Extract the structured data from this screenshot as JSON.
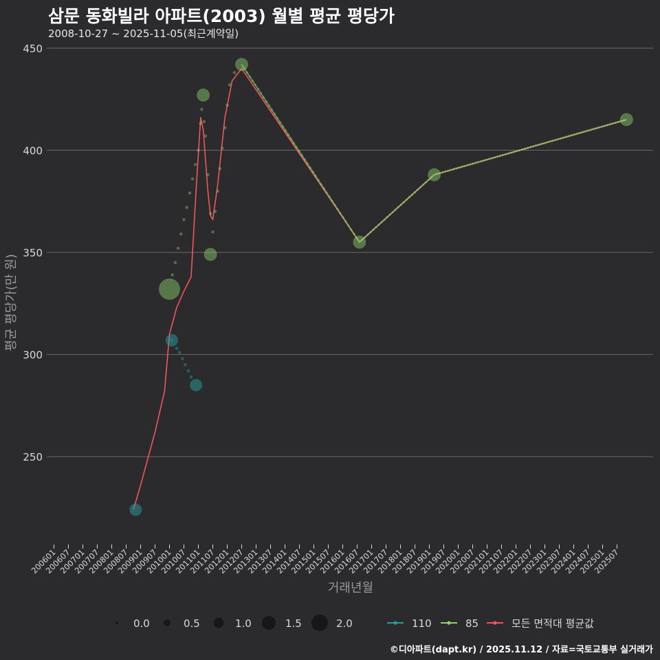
{
  "chart_data": {
    "type": "line",
    "title": "삼문 동화빌라 아파트(2003) 월별 평균 평당가",
    "subtitle": "2008-10-27 ~ 2025-11-05(최근계약일)",
    "xlabel": "거래년월",
    "ylabel": "평균 평당가(만 원)",
    "ylim": [
      207,
      452
    ],
    "y_ticks": [
      250,
      300,
      350,
      400,
      450
    ],
    "x_tick_labels": [
      "200601",
      "200607",
      "200701",
      "200707",
      "200801",
      "200807",
      "200901",
      "200907",
      "201001",
      "201007",
      "201101",
      "201107",
      "201201",
      "201207",
      "201301",
      "201307",
      "201401",
      "201407",
      "201501",
      "201507",
      "201601",
      "201607",
      "201701",
      "201707",
      "201801",
      "201807",
      "201901",
      "201907",
      "202001",
      "202007",
      "202101",
      "202107",
      "202201",
      "202207",
      "202301",
      "202307",
      "202401",
      "202407",
      "202501",
      "202507"
    ],
    "grid": true,
    "series": [
      {
        "name": "110",
        "color": "#2a9d9b",
        "points": [
          {
            "x": 2008.83,
            "y": 224,
            "size": 1.0
          },
          {
            "x": 2010.08,
            "y": 307,
            "size": 1.0
          },
          {
            "x": 2010.92,
            "y": 285,
            "size": 1.0
          }
        ],
        "interpolated": [
          [
            2010.08,
            307
          ],
          [
            2010.25,
            303
          ],
          [
            2010.35,
            301
          ],
          [
            2010.45,
            298
          ],
          [
            2010.55,
            295
          ],
          [
            2010.65,
            292
          ],
          [
            2010.75,
            289
          ]
        ]
      },
      {
        "name": "85",
        "color": "#8fd36f",
        "points": [
          {
            "x": 2010.0,
            "y": 332,
            "size": 2.0
          },
          {
            "x": 2011.17,
            "y": 427,
            "size": 1.0
          },
          {
            "x": 2011.42,
            "y": 349,
            "size": 1.0
          },
          {
            "x": 2012.5,
            "y": 442,
            "size": 1.0
          },
          {
            "x": 2016.58,
            "y": 355,
            "size": 1.0
          },
          {
            "x": 2019.17,
            "y": 388,
            "size": 1.0
          },
          {
            "x": 2025.83,
            "y": 415,
            "size": 1.0
          }
        ],
        "interpolated": [
          [
            2010.1,
            339
          ],
          [
            2010.2,
            345
          ],
          [
            2010.3,
            352
          ],
          [
            2010.4,
            359
          ],
          [
            2010.5,
            366
          ],
          [
            2010.6,
            372
          ],
          [
            2010.7,
            379
          ],
          [
            2010.8,
            386
          ],
          [
            2010.9,
            393
          ],
          [
            2011.0,
            400
          ],
          [
            2011.08,
            413
          ],
          [
            2011.12,
            420
          ],
          [
            2011.2,
            414
          ],
          [
            2011.25,
            407
          ],
          [
            2011.33,
            388
          ],
          [
            2011.42,
            369
          ],
          [
            2011.5,
            360
          ],
          [
            2011.58,
            370
          ],
          [
            2011.67,
            380
          ],
          [
            2011.75,
            391
          ],
          [
            2011.83,
            401
          ],
          [
            2011.92,
            411
          ],
          [
            2012.0,
            422
          ],
          [
            2012.08,
            432
          ],
          [
            2012.25,
            438
          ]
        ]
      },
      {
        "name": "모든 면적대 평균값",
        "color": "#f0565a",
        "points": [
          {
            "x": 2008.75,
            "y": 224
          },
          {
            "x": 2009.0,
            "y": 236
          },
          {
            "x": 2009.5,
            "y": 262
          },
          {
            "x": 2009.83,
            "y": 282
          },
          {
            "x": 2010.0,
            "y": 310
          },
          {
            "x": 2010.25,
            "y": 323
          },
          {
            "x": 2010.5,
            "y": 331
          },
          {
            "x": 2010.75,
            "y": 338
          },
          {
            "x": 2010.92,
            "y": 380
          },
          {
            "x": 2011.08,
            "y": 416
          },
          {
            "x": 2011.17,
            "y": 410
          },
          {
            "x": 2011.33,
            "y": 380
          },
          {
            "x": 2011.42,
            "y": 368
          },
          {
            "x": 2011.5,
            "y": 366
          },
          {
            "x": 2011.67,
            "y": 383
          },
          {
            "x": 2011.92,
            "y": 416
          },
          {
            "x": 2012.17,
            "y": 434
          },
          {
            "x": 2012.5,
            "y": 440
          },
          {
            "x": 2016.58,
            "y": 355
          },
          {
            "x": 2019.17,
            "y": 388
          },
          {
            "x": 2025.83,
            "y": 415
          }
        ]
      }
    ],
    "size_legend": {
      "values": [
        "0.0",
        "0.5",
        "1.0",
        "1.5",
        "2.0"
      ]
    }
  },
  "legend_items": [
    "110",
    "85",
    "모든 면적대 평균값"
  ],
  "credit": "©디아파트(dapt.kr) / 2025.11.12 / 자료=국토교통부 실거래가",
  "colors": {
    "background": "#2b2b2d",
    "grid": "#6b6b6b",
    "text": "#d9d9d9"
  }
}
